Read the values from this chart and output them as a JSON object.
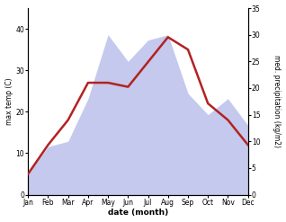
{
  "months": [
    "Jan",
    "Feb",
    "Mar",
    "Apr",
    "May",
    "Jun",
    "Jul",
    "Aug",
    "Sep",
    "Oct",
    "Nov",
    "Dec"
  ],
  "max_temp": [
    5,
    12,
    18,
    27,
    27,
    26,
    32,
    38,
    35,
    22,
    18,
    12
  ],
  "precipitation": [
    4,
    9,
    10,
    18,
    30,
    25,
    29,
    30,
    19,
    15,
    18,
    13
  ],
  "temp_color": "#b22222",
  "precip_color_fill": "#b0b8e8",
  "left_ylabel": "max temp (C)",
  "right_ylabel": "med. precipitation (kg/m2)",
  "xlabel": "date (month)",
  "left_ylim": [
    0,
    45
  ],
  "right_ylim": [
    0,
    35
  ],
  "left_yticks": [
    0,
    10,
    20,
    30,
    40
  ],
  "right_yticks": [
    0,
    5,
    10,
    15,
    20,
    25,
    30,
    35
  ],
  "temp_linewidth": 1.8,
  "figsize": [
    3.18,
    2.47
  ],
  "dpi": 100
}
